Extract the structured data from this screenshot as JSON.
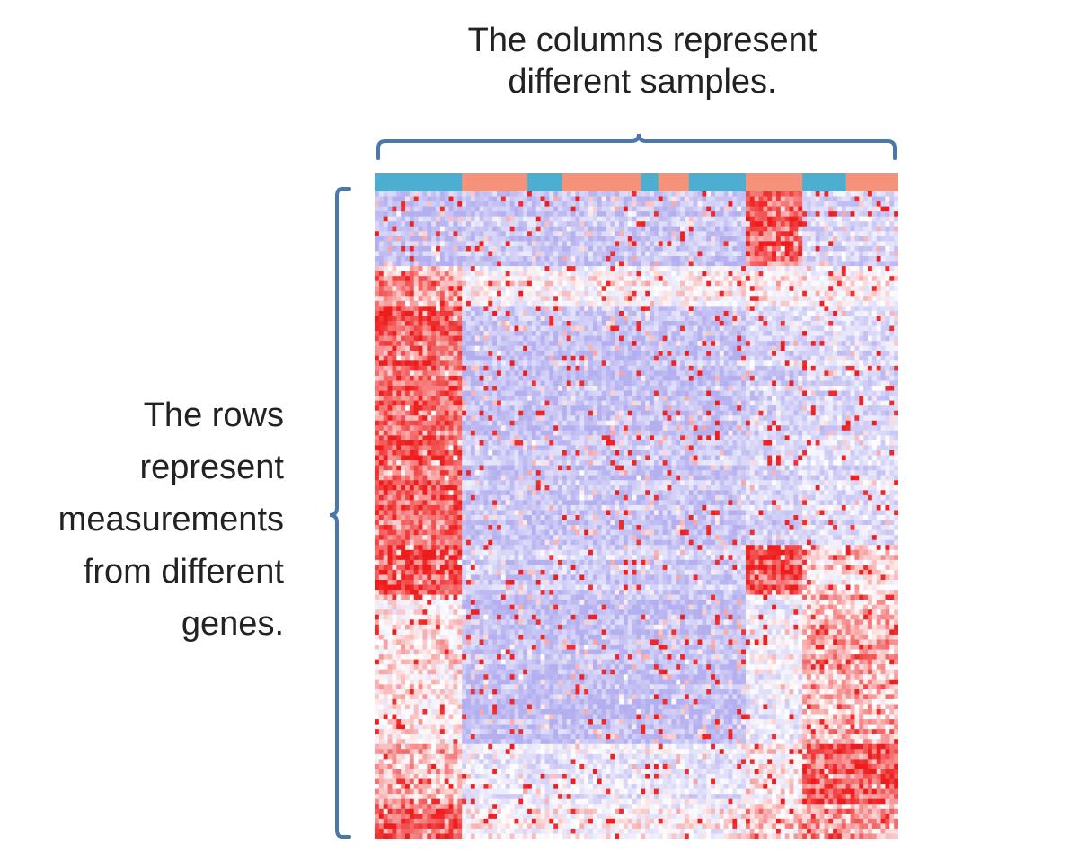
{
  "slide": {
    "column_caption": [
      "The columns represent",
      "different samples."
    ],
    "row_caption": [
      "The rows",
      "represent",
      "measurements",
      "from different",
      "genes."
    ]
  },
  "colors": {
    "bracket": "#4a78a8",
    "low": "#b4b0f0",
    "mid": "#ffffff",
    "high": "#ee1c1c",
    "sample_group_a": "#4eaed0",
    "sample_group_b": "#f4937a"
  },
  "chart_data": {
    "type": "heatmap",
    "title": "",
    "xlabel": "",
    "ylabel": "",
    "n_columns": 120,
    "n_rows": 130,
    "color_scale": [
      "#b4b0f0",
      "#ffffff",
      "#ee1c1c"
    ],
    "legend": "none",
    "sample_annotation": [
      {
        "columns": [
          0,
          19
        ],
        "group": "a"
      },
      {
        "columns": [
          20,
          34
        ],
        "group": "b"
      },
      {
        "columns": [
          35,
          42
        ],
        "group": "a"
      },
      {
        "columns": [
          43,
          60
        ],
        "group": "b"
      },
      {
        "columns": [
          61,
          64
        ],
        "group": "a"
      },
      {
        "columns": [
          65,
          71
        ],
        "group": "b"
      },
      {
        "columns": [
          72,
          84
        ],
        "group": "a"
      },
      {
        "columns": [
          85,
          97
        ],
        "group": "b"
      },
      {
        "columns": [
          98,
          107
        ],
        "group": "a"
      },
      {
        "columns": [
          108,
          119
        ],
        "group": "b"
      }
    ],
    "column_clusters": [
      [
        0,
        19
      ],
      [
        20,
        84
      ],
      [
        85,
        97
      ],
      [
        98,
        119
      ]
    ],
    "row_clusters": [
      {
        "rows": [
          0,
          14
        ],
        "levels": [
          0.1,
          0.15,
          0.85,
          0.25
        ]
      },
      {
        "rows": [
          15,
          22
        ],
        "levels": [
          0.7,
          0.45,
          0.5,
          0.45
        ]
      },
      {
        "rows": [
          23,
          70
        ],
        "levels": [
          0.85,
          0.15,
          0.25,
          0.3
        ]
      },
      {
        "rows": [
          71,
          80
        ],
        "levels": [
          0.9,
          0.2,
          0.9,
          0.55
        ]
      },
      {
        "rows": [
          81,
          110
        ],
        "levels": [
          0.55,
          0.12,
          0.4,
          0.68
        ]
      },
      {
        "rows": [
          111,
          122
        ],
        "levels": [
          0.65,
          0.35,
          0.5,
          0.85
        ]
      },
      {
        "rows": [
          123,
          129
        ],
        "levels": [
          0.85,
          0.45,
          0.6,
          0.7
        ]
      }
    ]
  }
}
